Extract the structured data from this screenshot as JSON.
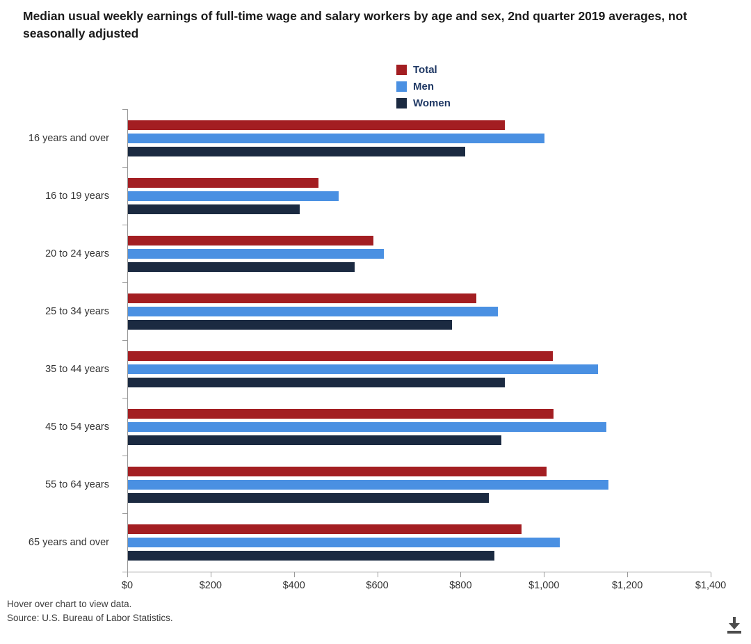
{
  "header": {
    "title": "Median usual weekly earnings of full-time wage and salary workers by age and sex, 2nd quarter 2019 averages, not seasonally adjusted"
  },
  "legend": [
    {
      "label": "Total",
      "color": "#a31e22"
    },
    {
      "label": "Men",
      "color": "#4a90e2"
    },
    {
      "label": "Women",
      "color": "#1b2a41"
    }
  ],
  "chart_data": {
    "type": "bar",
    "orientation": "horizontal",
    "title": "Median usual weekly earnings of full-time wage and salary workers by age and sex, 2nd quarter 2019 averages, not seasonally adjusted",
    "categories": [
      "16 years and over",
      "16 to 19 years",
      "20 to 24 years",
      "25 to 34 years",
      "35 to 44 years",
      "45 to 54 years",
      "55 to 64 years",
      "65 years and over"
    ],
    "series": [
      {
        "name": "Total",
        "color": "#a31e22",
        "values": [
          905,
          457,
          589,
          837,
          1020,
          1022,
          1005,
          945
        ]
      },
      {
        "name": "Men",
        "color": "#4a90e2",
        "values": [
          1000,
          507,
          615,
          889,
          1130,
          1150,
          1155,
          1037
        ]
      },
      {
        "name": "Women",
        "color": "#1b2a41",
        "values": [
          810,
          412,
          545,
          778,
          905,
          897,
          867,
          880
        ]
      }
    ],
    "xlabel": "",
    "ylabel": "",
    "xlim": [
      0,
      1400
    ],
    "x_tick_values": [
      0,
      200,
      400,
      600,
      800,
      1000,
      1200,
      1400
    ],
    "x_tick_labels": [
      "$0",
      "$200",
      "$400",
      "$600",
      "$800",
      "$1,000",
      "$1,200",
      "$1,400"
    ],
    "grid": false,
    "legend_position": "top"
  },
  "footer": {
    "hover_note": "Hover over chart to view data.",
    "source": "Source: U.S. Bureau of Labor Statistics."
  },
  "icons": {
    "download": "download-icon"
  }
}
